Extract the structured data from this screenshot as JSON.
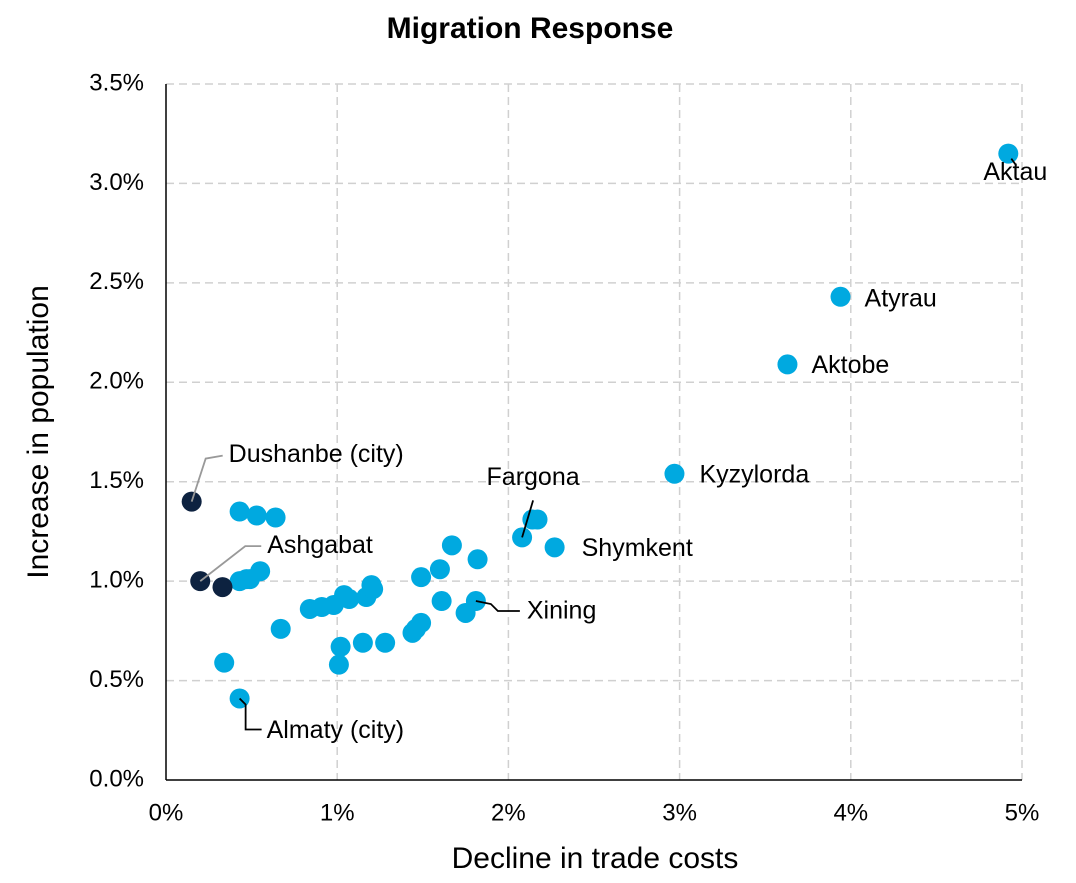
{
  "chart_data": {
    "type": "scatter",
    "title": "Migration Response",
    "x_label": "Decline in trade costs",
    "y_label": "Increase in population",
    "xlim": [
      0,
      5
    ],
    "ylim": [
      0,
      3.5
    ],
    "xticks": [
      {
        "value": 0,
        "label": "0%"
      },
      {
        "value": 1,
        "label": "1%"
      },
      {
        "value": 2,
        "label": "2%"
      },
      {
        "value": 3,
        "label": "3%"
      },
      {
        "value": 4,
        "label": "4%"
      },
      {
        "value": 5,
        "label": "5%"
      }
    ],
    "yticks": [
      {
        "value": 0,
        "label": "0.0%"
      },
      {
        "value": 0.5,
        "label": "0.5%"
      },
      {
        "value": 1,
        "label": "1.0%"
      },
      {
        "value": 1.5,
        "label": "1.5%"
      },
      {
        "value": 2,
        "label": "2.0%"
      },
      {
        "value": 2.5,
        "label": "2.5%"
      },
      {
        "value": 3,
        "label": "3.0%"
      },
      {
        "value": 3.5,
        "label": "3.5%"
      }
    ],
    "grid": true,
    "series": [
      {
        "color": "#00a9e0",
        "x": [
          4.92,
          3.94,
          3.63,
          2.97,
          2.08,
          2.14,
          2.17,
          2.27,
          1.81,
          0.43,
          0.53,
          0.64,
          0.43,
          0.47,
          0.49,
          0.55,
          0.34,
          0.43,
          0.67,
          0.84,
          0.91,
          0.98,
          1.04,
          1.07,
          1.17,
          1.2,
          1.21,
          1.02,
          1.01,
          1.15,
          1.28,
          1.44,
          1.46,
          1.49,
          1.49,
          1.6,
          1.67,
          1.61,
          1.75,
          1.82
        ],
        "values": [
          3.15,
          2.43,
          2.09,
          1.54,
          1.22,
          1.31,
          1.31,
          1.17,
          0.9,
          1.35,
          1.33,
          1.32,
          1.0,
          1.01,
          1.01,
          1.05,
          0.59,
          0.41,
          0.76,
          0.86,
          0.87,
          0.88,
          0.93,
          0.91,
          0.92,
          0.98,
          0.96,
          0.67,
          0.58,
          0.69,
          0.69,
          0.74,
          0.76,
          0.79,
          1.02,
          1.06,
          1.18,
          0.9,
          0.84,
          1.11
        ],
        "labels": [
          "Aktau",
          "Atyrau",
          "Aktobe",
          "Kyzylorda",
          "Fargona",
          null,
          null,
          "Shymkent",
          "Xining",
          null,
          null,
          null,
          null,
          null,
          null,
          null,
          null,
          "Almaty (city)",
          null,
          null,
          null,
          null,
          null,
          null,
          null,
          null,
          null,
          null,
          null,
          null,
          null,
          null,
          null,
          null,
          null,
          null,
          null,
          null,
          null,
          null
        ]
      },
      {
        "color": "#0d2240",
        "x": [
          0.15,
          0.2,
          0.33
        ],
        "values": [
          1.4,
          1.0,
          0.97
        ],
        "labels": [
          "Dushanbe (city)",
          "Ashgabat",
          null
        ]
      }
    ]
  }
}
